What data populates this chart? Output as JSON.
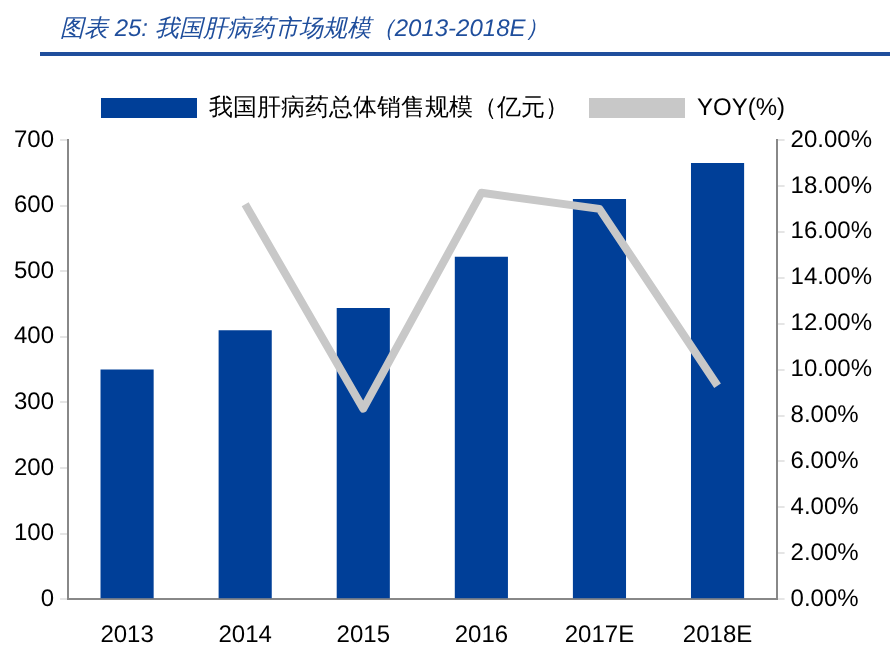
{
  "chart_data": {
    "type": "bar",
    "title": "图表 25: 我国肝病药市场规模（2013-2018E）",
    "categories": [
      "2013",
      "2014",
      "2015",
      "2016",
      "2017E",
      "2018E"
    ],
    "series": [
      {
        "name": "我国肝病药总体销售规模（亿元）",
        "color": "#003f98",
        "values": [
          350,
          410,
          444,
          522,
          610,
          665
        ]
      },
      {
        "type": "line",
        "name": "YOY(%)",
        "color": "#c8c8c8",
        "axis": "y2",
        "values": [
          null,
          17.2,
          8.3,
          17.7,
          17.0,
          9.3
        ]
      }
    ],
    "ylim": [
      0,
      700
    ],
    "yticks": [
      0,
      100,
      200,
      300,
      400,
      500,
      600,
      700
    ],
    "y2lim": [
      0,
      20
    ],
    "y2ticks": [
      {
        "value": 0,
        "label": "0.00%"
      },
      {
        "value": 2,
        "label": "2.00%"
      },
      {
        "value": 4,
        "label": "4.00%"
      },
      {
        "value": 6,
        "label": "6.00%"
      },
      {
        "value": 8,
        "label": "8.00%"
      },
      {
        "value": 10,
        "label": "10.00%"
      },
      {
        "value": 12,
        "label": "12.00%"
      },
      {
        "value": 14,
        "label": "14.00%"
      },
      {
        "value": 16,
        "label": "16.00%"
      },
      {
        "value": 18,
        "label": "18.00%"
      },
      {
        "value": 20,
        "label": "20.00%"
      }
    ],
    "grid": false,
    "legend": "top",
    "marker": "none"
  }
}
